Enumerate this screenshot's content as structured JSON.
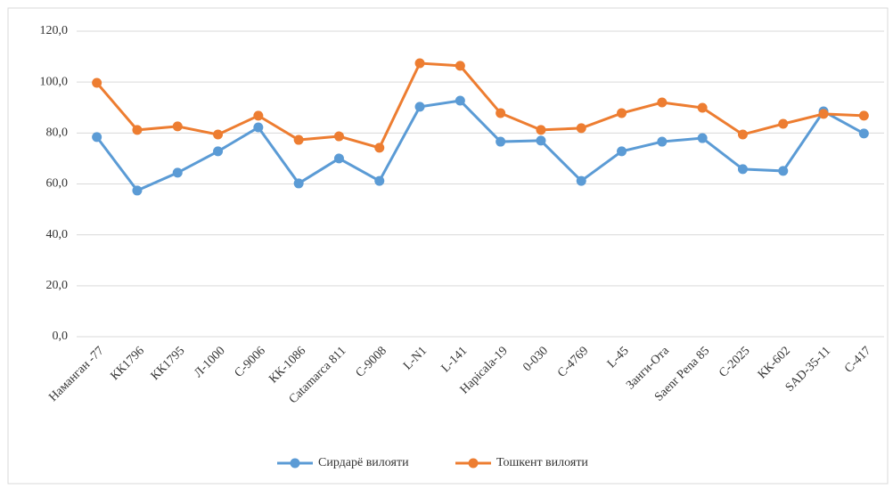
{
  "chart_data": {
    "type": "line",
    "categories": [
      "Наманган -77",
      "КК1796",
      "КК1795",
      "Л-1000",
      "С-9006",
      "КК-1086",
      "Catamarca 811",
      "С-9008",
      "L-N1",
      "L-141",
      "Hapicala-19",
      "0-030",
      "С-4769",
      "L-45",
      "Занги-Ота",
      "Saenr Pena 85",
      "С-2025",
      "КК-602",
      "SAD-35-11",
      "С-417"
    ],
    "series": [
      {
        "name": "Сирдарё вилояти",
        "color": "#5b9bd5",
        "values": [
          78.4,
          57.4,
          64.4,
          72.8,
          82.2,
          60.2,
          70.0,
          61.2,
          90.3,
          92.7,
          76.6,
          77.0,
          61.2,
          72.8,
          76.6,
          78.0,
          65.8,
          65.1,
          88.5,
          79.8
        ]
      },
      {
        "name": "Тошкент вилояти",
        "color": "#ed7d31",
        "values": [
          99.7,
          81.2,
          82.6,
          79.4,
          86.8,
          77.3,
          78.7,
          74.2,
          107.4,
          106.4,
          87.8,
          81.2,
          81.9,
          87.8,
          92.0,
          89.9,
          79.4,
          83.6,
          87.5,
          86.8
        ]
      }
    ],
    "ylim": [
      0,
      120
    ],
    "yticks": [
      {
        "value": 0,
        "label": "0,0"
      },
      {
        "value": 20,
        "label": "20,0"
      },
      {
        "value": 40,
        "label": "40,0"
      },
      {
        "value": 60,
        "label": "60,0"
      },
      {
        "value": 80,
        "label": "80,0"
      },
      {
        "value": 100,
        "label": "100,0"
      },
      {
        "value": 120,
        "label": "120,0"
      }
    ],
    "grid": true,
    "legend": "bottom"
  }
}
